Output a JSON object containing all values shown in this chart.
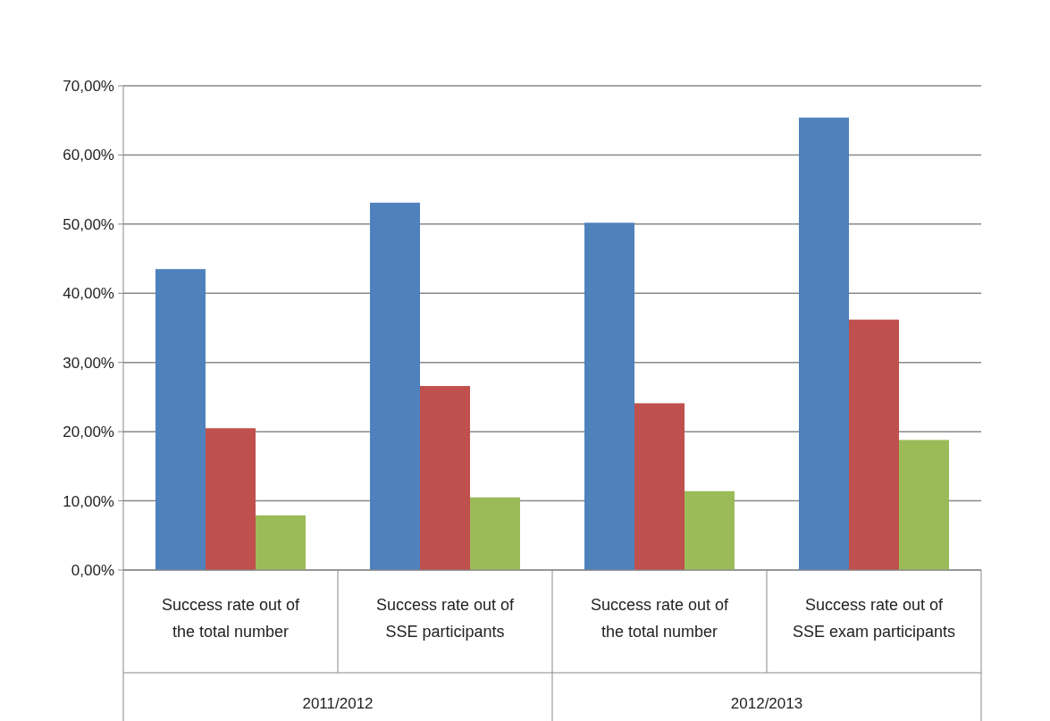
{
  "chart_data": {
    "type": "bar",
    "categories": [
      "Success rate out of the total number",
      "Success rate out of SSE participants",
      "Success rate out of the total number",
      "Success rate out of SSE exam participants"
    ],
    "series": [
      {
        "color": "#4f81bd",
        "values": [
          43.5,
          53.1,
          50.2,
          65.4
        ]
      },
      {
        "color": "#c0504d",
        "values": [
          20.5,
          26.6,
          24.1,
          36.2
        ]
      },
      {
        "color": "#9bbb59",
        "values": [
          7.9,
          10.5,
          11.4,
          18.8
        ]
      }
    ],
    "ylim": [
      0,
      70
    ],
    "yticks": [
      {
        "value": 0,
        "label": "0,00%"
      },
      {
        "value": 10,
        "label": "10,00%"
      },
      {
        "value": 20,
        "label": "20,00%"
      },
      {
        "value": 30,
        "label": "30,00%"
      },
      {
        "value": 40,
        "label": "40,00%"
      },
      {
        "value": 50,
        "label": "50,00%"
      },
      {
        "value": 60,
        "label": "60,00%"
      },
      {
        "value": 70,
        "label": "70,00%"
      }
    ],
    "grid": "y",
    "annotations": [
      "2011/2012",
      "2012/2013"
    ]
  }
}
